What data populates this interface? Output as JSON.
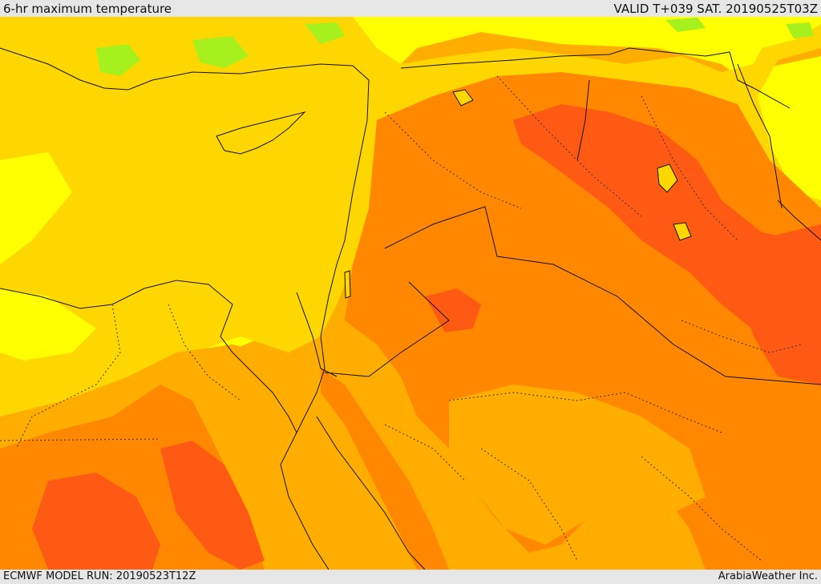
{
  "header": {
    "title": "6-hr maximum temperature",
    "valid": "VALID T+039 SAT. 20190525T03Z"
  },
  "footer": {
    "model_run": "ECMWF MODEL RUN: 20190523T12Z",
    "credit": "ArabiaWeather Inc."
  },
  "colors": {
    "light_yellow": "#ffff00",
    "yellow": "#ffd700",
    "amber": "#ffae00",
    "orange": "#ff8800",
    "red_orange": "#ff5a14",
    "green": "#a6f01e",
    "boundary": "#111111"
  }
}
